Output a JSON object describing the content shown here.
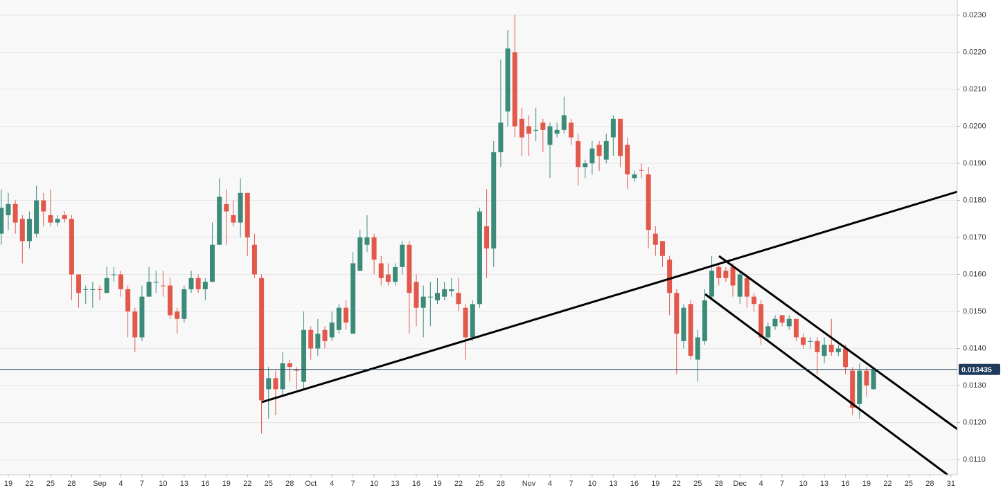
{
  "chart_data": {
    "type": "candlestick",
    "x": [
      -1,
      0,
      1,
      2,
      3,
      4,
      5,
      6,
      7,
      8,
      9,
      10,
      11,
      12,
      13,
      14,
      15,
      16,
      17,
      18,
      19,
      20,
      21,
      22,
      23,
      24,
      25,
      26,
      27,
      28,
      29,
      30,
      31,
      32,
      33,
      34,
      35,
      36,
      37,
      38,
      39,
      40,
      41,
      42,
      43,
      44,
      45,
      46,
      47,
      48,
      49,
      50,
      51,
      52,
      53,
      54,
      55,
      56,
      57,
      58,
      59,
      60,
      61,
      62,
      63,
      64,
      65,
      66,
      67,
      68,
      69,
      70,
      71,
      72,
      73,
      74,
      75,
      76,
      77,
      78,
      79,
      80,
      81,
      82,
      83,
      84,
      85,
      86,
      87,
      88,
      89,
      90,
      91,
      92,
      93,
      94,
      95,
      96,
      97,
      98,
      99,
      100,
      101,
      102,
      103,
      104,
      105,
      106,
      107,
      108,
      109,
      110,
      111,
      112,
      113,
      114,
      115,
      116,
      117,
      118,
      119,
      120,
      121,
      122,
      123
    ],
    "open": [
      0.0171,
      0.0176,
      0.0179,
      0.0175,
      0.0169,
      0.0171,
      0.018,
      0.0176,
      0.0174,
      0.0176,
      0.0175,
      0.016,
      0.0156,
      0.01558,
      0.0156,
      0.0155,
      0.01598,
      0.016,
      0.0156,
      0.015,
      0.0143,
      0.0154,
      0.01578,
      0.0157,
      0.0157,
      0.015,
      0.0148,
      0.0156,
      0.0159,
      0.0156,
      0.0158,
      0.0168,
      0.0179,
      0.0176,
      0.0174,
      0.0182,
      0.0168,
      0.0159,
      0.0129,
      0.0132,
      0.0129,
      0.0136,
      0.01342,
      0.0131,
      0.0145,
      0.014,
      0.0145,
      0.0143,
      0.0145,
      0.0151,
      0.0144,
      0.0161,
      0.0168,
      0.017,
      0.0163,
      0.016,
      0.0158,
      0.0162,
      0.0168,
      0.0158,
      0.0151,
      0.01538,
      0.0153,
      0.0154,
      0.01555,
      0.0155,
      0.0151,
      0.0143,
      0.0152,
      0.0173,
      0.0167,
      0.0193,
      0.0204,
      0.022,
      0.0202,
      0.02,
      0.01988,
      0.0201,
      0.0195,
      0.0198,
      0.0199,
      0.0201,
      0.0196,
      0.0189,
      0.019,
      0.0195,
      0.0191,
      0.0197,
      0.0202,
      0.0195,
      0.0186,
      0.01882,
      0.0187,
      0.0171,
      0.0169,
      0.0164,
      0.0155,
      0.0142,
      0.0152,
      0.0137,
      0.0142,
      0.0154,
      0.0162,
      0.0161,
      0.0162,
      0.0154,
      0.0159,
      0.0154,
      0.0152,
      0.0143,
      0.0146,
      0.0149,
      0.0146,
      0.0148,
      0.0143,
      0.01418,
      0.0142,
      0.0138,
      0.0141,
      0.0139,
      0.014,
      0.0134,
      0.0125,
      0.0134,
      0.0129
    ],
    "high": [
      0.0183,
      0.0182,
      0.018,
      0.0176,
      0.0177,
      0.0184,
      0.0182,
      0.0183,
      0.0176,
      0.0177,
      0.0176,
      0.016,
      0.0157,
      0.0158,
      0.0157,
      0.0162,
      0.0162,
      0.0161,
      0.0157,
      0.0151,
      0.0157,
      0.0162,
      0.0161,
      0.0161,
      0.0159,
      0.0151,
      0.0157,
      0.0161,
      0.016,
      0.0159,
      0.0174,
      0.0186,
      0.0183,
      0.018,
      0.0186,
      0.0182,
      0.0171,
      0.016,
      0.0135,
      0.0134,
      0.0139,
      0.0137,
      0.0135,
      0.015,
      0.0146,
      0.0148,
      0.0146,
      0.015,
      0.0152,
      0.0153,
      0.0166,
      0.0172,
      0.0176,
      0.0171,
      0.0165,
      0.0163,
      0.0163,
      0.0169,
      0.0169,
      0.016,
      0.0157,
      0.0158,
      0.0159,
      0.0158,
      0.0159,
      0.0159,
      0.0152,
      0.0153,
      0.0178,
      0.0183,
      0.0196,
      0.0218,
      0.0226,
      0.023,
      0.0205,
      0.0203,
      0.0205,
      0.0202,
      0.0201,
      0.0201,
      0.0208,
      0.0202,
      0.0198,
      0.0191,
      0.0196,
      0.0196,
      0.0198,
      0.0203,
      0.0202,
      0.0197,
      0.0188,
      0.019,
      0.0189,
      0.0173,
      0.0169,
      0.0165,
      0.0156,
      0.0152,
      0.0153,
      0.0145,
      0.0156,
      0.0165,
      0.0163,
      0.0162,
      0.0163,
      0.0161,
      0.016,
      0.0155,
      0.0153,
      0.0147,
      0.0149,
      0.0149,
      0.0149,
      0.0148,
      0.0144,
      0.0143,
      0.0143,
      0.0143,
      0.0148,
      0.0141,
      0.0141,
      0.0135,
      0.0136,
      0.0135,
      0.0135
    ],
    "low": [
      0.0168,
      0.0172,
      0.0171,
      0.0163,
      0.0167,
      0.017,
      0.0173,
      0.0173,
      0.0173,
      0.0174,
      0.0153,
      0.0151,
      0.0152,
      0.0151,
      0.0153,
      0.0155,
      0.0158,
      0.0154,
      0.0143,
      0.0139,
      0.0142,
      0.0154,
      0.0155,
      0.0154,
      0.0148,
      0.0144,
      0.0147,
      0.0155,
      0.0155,
      0.0153,
      0.0158,
      0.0168,
      0.0168,
      0.0173,
      0.017,
      0.0165,
      0.0159,
      0.0117,
      0.0121,
      0.0122,
      0.0127,
      0.0131,
      0.0129,
      0.0129,
      0.0137,
      0.0138,
      0.014,
      0.0142,
      0.0144,
      0.0145,
      0.0144,
      0.0161,
      0.0166,
      0.016,
      0.0157,
      0.0157,
      0.0157,
      0.016,
      0.0144,
      0.0146,
      0.0143,
      0.0146,
      0.0152,
      0.0153,
      0.0154,
      0.015,
      0.0137,
      0.0142,
      0.0151,
      0.0159,
      0.0162,
      0.0189,
      0.02,
      0.0197,
      0.0192,
      0.0192,
      0.0196,
      0.0193,
      0.0186,
      0.0197,
      0.0198,
      0.0195,
      0.0184,
      0.0186,
      0.0187,
      0.0188,
      0.019,
      0.0192,
      0.0189,
      0.0183,
      0.0185,
      0.0186,
      0.0167,
      0.0165,
      0.0162,
      0.0149,
      0.0133,
      0.014,
      0.0137,
      0.0131,
      0.0141,
      0.0153,
      0.0157,
      0.0158,
      0.0154,
      0.0152,
      0.0151,
      0.015,
      0.0141,
      0.0142,
      0.0145,
      0.0146,
      0.0145,
      0.0142,
      0.014,
      0.014,
      0.0133,
      0.0136,
      0.0138,
      0.0138,
      0.0133,
      0.0122,
      0.0121,
      0.0127,
      0.0129
    ],
    "close": [
      0.0178,
      0.0179,
      0.0174,
      0.0169,
      0.0175,
      0.018,
      0.0177,
      0.0174,
      0.0175,
      0.0175,
      0.016,
      0.0155,
      0.0156,
      0.0156,
      0.01558,
      0.0159,
      0.016,
      0.0156,
      0.015,
      0.0143,
      0.0154,
      0.0158,
      0.0158,
      0.01568,
      0.0149,
      0.0148,
      0.0156,
      0.0159,
      0.0156,
      0.0158,
      0.0168,
      0.0181,
      0.0177,
      0.0174,
      0.0182,
      0.017,
      0.016,
      0.0126,
      0.0132,
      0.0129,
      0.0136,
      0.0135,
      0.0134,
      0.0145,
      0.014,
      0.0144,
      0.0142,
      0.0147,
      0.0151,
      0.0147,
      0.0163,
      0.017,
      0.017,
      0.0164,
      0.0159,
      0.0158,
      0.0162,
      0.0168,
      0.0155,
      0.0151,
      0.0154,
      0.0154,
      0.0155,
      0.0156,
      0.0156,
      0.0152,
      0.0143,
      0.0152,
      0.0177,
      0.0167,
      0.0193,
      0.0201,
      0.0221,
      0.02,
      0.0197,
      0.0198,
      0.0199,
      0.0199,
      0.02,
      0.0199,
      0.0203,
      0.0197,
      0.0189,
      0.019,
      0.0194,
      0.0192,
      0.0196,
      0.0202,
      0.0192,
      0.0187,
      0.0187,
      0.0188,
      0.0172,
      0.0168,
      0.0165,
      0.0155,
      0.0144,
      0.0151,
      0.0138,
      0.0143,
      0.0153,
      0.0161,
      0.0159,
      0.0159,
      0.0157,
      0.016,
      0.0154,
      0.0152,
      0.0143,
      0.0146,
      0.0148,
      0.0147,
      0.0148,
      0.0143,
      0.0141,
      0.0142,
      0.0139,
      0.0141,
      0.0139,
      0.014,
      0.0135,
      0.0124,
      0.0134,
      0.013,
      0.013435
    ],
    "up_color": "#3b8b78",
    "down_color": "#e2584a",
    "current_price": 0.013435,
    "xlim": [
      -1.18,
      134.9
    ],
    "ylim": [
      0.01059,
      0.02341
    ],
    "xticks": [
      {
        "value": 0,
        "label": "19"
      },
      {
        "value": 3,
        "label": "22"
      },
      {
        "value": 6,
        "label": "25"
      },
      {
        "value": 9,
        "label": "28"
      },
      {
        "value": 13,
        "label": "Sep"
      },
      {
        "value": 16,
        "label": "4"
      },
      {
        "value": 19,
        "label": "7"
      },
      {
        "value": 22,
        "label": "10"
      },
      {
        "value": 25,
        "label": "13"
      },
      {
        "value": 28,
        "label": "16"
      },
      {
        "value": 31,
        "label": "19"
      },
      {
        "value": 34,
        "label": "22"
      },
      {
        "value": 37,
        "label": "25"
      },
      {
        "value": 40,
        "label": "28"
      },
      {
        "value": 43,
        "label": "Oct"
      },
      {
        "value": 46,
        "label": "4"
      },
      {
        "value": 49,
        "label": "7"
      },
      {
        "value": 52,
        "label": "10"
      },
      {
        "value": 55,
        "label": "13"
      },
      {
        "value": 58,
        "label": "16"
      },
      {
        "value": 61,
        "label": "19"
      },
      {
        "value": 64,
        "label": "22"
      },
      {
        "value": 67,
        "label": "25"
      },
      {
        "value": 70,
        "label": "28"
      },
      {
        "value": 74,
        "label": "Nov"
      },
      {
        "value": 77,
        "label": "4"
      },
      {
        "value": 80,
        "label": "7"
      },
      {
        "value": 83,
        "label": "10"
      },
      {
        "value": 86,
        "label": "13"
      },
      {
        "value": 89,
        "label": "16"
      },
      {
        "value": 92,
        "label": "19"
      },
      {
        "value": 95,
        "label": "22"
      },
      {
        "value": 98,
        "label": "25"
      },
      {
        "value": 101,
        "label": "28"
      },
      {
        "value": 104,
        "label": "Dec"
      },
      {
        "value": 107,
        "label": "4"
      },
      {
        "value": 110,
        "label": "7"
      },
      {
        "value": 113,
        "label": "10"
      },
      {
        "value": 116,
        "label": "13"
      },
      {
        "value": 119,
        "label": "16"
      },
      {
        "value": 122,
        "label": "19"
      },
      {
        "value": 125,
        "label": "22"
      },
      {
        "value": 128,
        "label": "25"
      },
      {
        "value": 131,
        "label": "28"
      },
      {
        "value": 134,
        "label": "31"
      }
    ],
    "yticks": [
      {
        "value": 0.011,
        "label": "0.0110"
      },
      {
        "value": 0.012,
        "label": "0.0120"
      },
      {
        "value": 0.013,
        "label": "0.0130"
      },
      {
        "value": 0.014,
        "label": "0.0140"
      },
      {
        "value": 0.015,
        "label": "0.0150"
      },
      {
        "value": 0.016,
        "label": "0.0160"
      },
      {
        "value": 0.017,
        "label": "0.0170"
      },
      {
        "value": 0.018,
        "label": "0.0180"
      },
      {
        "value": 0.019,
        "label": "0.0190"
      },
      {
        "value": 0.02,
        "label": "0.0200"
      },
      {
        "value": 0.021,
        "label": "0.0210"
      },
      {
        "value": 0.022,
        "label": "0.0220"
      },
      {
        "value": 0.023,
        "label": "0.0230"
      }
    ],
    "grid": true
  }
}
